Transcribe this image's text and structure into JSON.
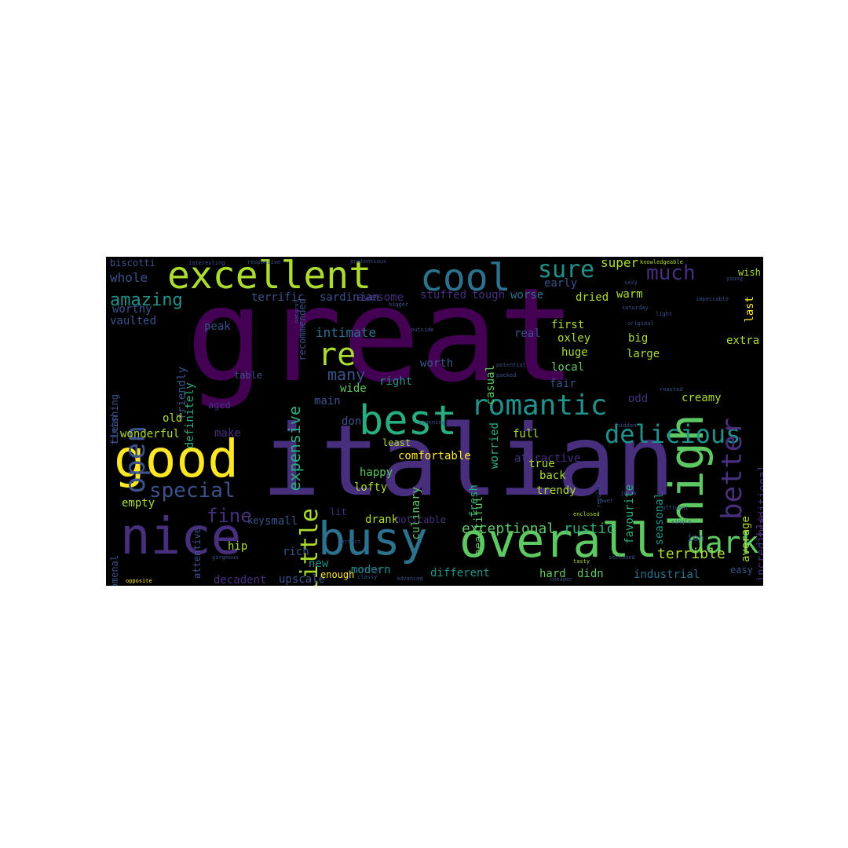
{
  "colors": {
    "background": "#000000",
    "page": "#ffffff",
    "palette": [
      "#440154",
      "#472f7d",
      "#3b528b",
      "#2c728e",
      "#21918c",
      "#28ae80",
      "#5ec962",
      "#addc30",
      "#fde725"
    ]
  },
  "words": [
    {
      "text": "great",
      "color": "#440154"
    },
    {
      "text": "italian",
      "color": "#472f7d"
    },
    {
      "text": "excellent",
      "color": "#addc30"
    },
    {
      "text": "cool",
      "color": "#2c728e"
    },
    {
      "text": "good",
      "color": "#fde725"
    },
    {
      "text": "nice",
      "color": "#472f7d"
    },
    {
      "text": "busy",
      "color": "#2c728e"
    },
    {
      "text": "overall",
      "color": "#5ec962"
    },
    {
      "text": "high",
      "color": "#5ec962"
    },
    {
      "text": "best",
      "color": "#28ae80"
    },
    {
      "text": "romantic",
      "color": "#21918c"
    },
    {
      "text": "delicious",
      "color": "#21918c"
    },
    {
      "text": "better",
      "color": "#472f7d"
    },
    {
      "text": "open",
      "color": "#3b528b"
    },
    {
      "text": "re",
      "color": "#addc30"
    },
    {
      "text": "little",
      "color": "#addc30"
    },
    {
      "text": "dark",
      "color": "#5ec962"
    },
    {
      "text": "sure",
      "color": "#21918c"
    },
    {
      "text": "much",
      "color": "#472f7d"
    },
    {
      "text": "special",
      "color": "#3b528b"
    },
    {
      "text": "amazing",
      "color": "#21918c"
    },
    {
      "text": "fine",
      "color": "#472f7d"
    },
    {
      "text": "exceptional",
      "color": "#5ec962"
    },
    {
      "text": "rustic",
      "color": "#28ae80"
    },
    {
      "text": "terrible",
      "color": "#addc30"
    },
    {
      "text": "expensive",
      "color": "#28ae80"
    },
    {
      "text": "many",
      "color": "#3b528b"
    },
    {
      "text": "intimate",
      "color": "#2c728e"
    },
    {
      "text": "whole",
      "color": "#3b528b"
    },
    {
      "text": "super",
      "color": "#addc30"
    },
    {
      "text": "terrific",
      "color": "#3b528b"
    },
    {
      "text": "sardinian",
      "color": "#3b528b"
    },
    {
      "text": "awesome",
      "color": "#472f7d"
    },
    {
      "text": "stuffed",
      "color": "#472f7d"
    },
    {
      "text": "tough",
      "color": "#472f7d"
    },
    {
      "text": "worse",
      "color": "#2c728e"
    },
    {
      "text": "early",
      "color": "#3b528b"
    },
    {
      "text": "dried",
      "color": "#addc30"
    },
    {
      "text": "warm",
      "color": "#addc30"
    },
    {
      "text": "last",
      "color": "#fde725"
    },
    {
      "text": "worthy",
      "color": "#3b528b"
    },
    {
      "text": "vaulted",
      "color": "#3b528b"
    },
    {
      "text": "peak",
      "color": "#3b528b"
    },
    {
      "text": "friendly",
      "color": "#3b528b"
    },
    {
      "text": "first",
      "color": "#addc30"
    },
    {
      "text": "oxley",
      "color": "#addc30"
    },
    {
      "text": "big",
      "color": "#addc30"
    },
    {
      "text": "extra",
      "color": "#addc30"
    },
    {
      "text": "huge",
      "color": "#addc30"
    },
    {
      "text": "large",
      "color": "#addc30"
    },
    {
      "text": "local",
      "color": "#5ec962"
    },
    {
      "text": "fair",
      "color": "#3b528b"
    },
    {
      "text": "worth",
      "color": "#3b528b"
    },
    {
      "text": "casual",
      "color": "#5ec962"
    },
    {
      "text": "wide",
      "color": "#5ec962"
    },
    {
      "text": "right",
      "color": "#21918c"
    },
    {
      "text": "main",
      "color": "#3b528b"
    },
    {
      "text": "worried",
      "color": "#28ae80"
    },
    {
      "text": "odd",
      "color": "#472f7d"
    },
    {
      "text": "creamy",
      "color": "#addc30"
    },
    {
      "text": "definitely",
      "color": "#28ae80"
    },
    {
      "text": "clean",
      "color": "#3b528b"
    },
    {
      "text": "finishing",
      "color": "#3b528b"
    },
    {
      "text": "aged",
      "color": "#472f7d"
    },
    {
      "text": "old",
      "color": "#addc30"
    },
    {
      "text": "wonderful",
      "color": "#addc30"
    },
    {
      "text": "make",
      "color": "#472f7d"
    },
    {
      "text": "don",
      "color": "#3b528b"
    },
    {
      "text": "full",
      "color": "#addc30"
    },
    {
      "text": "seasonal",
      "color": "#21918c"
    },
    {
      "text": "traditional",
      "color": "#472f7d"
    },
    {
      "text": "average",
      "color": "#addc30"
    },
    {
      "text": "incredible",
      "color": "#472f7d"
    },
    {
      "text": "favourite",
      "color": "#28ae80"
    },
    {
      "text": "attractive",
      "color": "#472f7d"
    },
    {
      "text": "fresh",
      "color": "#28ae80"
    },
    {
      "text": "true",
      "color": "#addc30"
    },
    {
      "text": "back",
      "color": "#addc30"
    },
    {
      "text": "happy",
      "color": "#5ec962"
    },
    {
      "text": "lofty",
      "color": "#addc30"
    },
    {
      "text": "trendy",
      "color": "#addc30"
    },
    {
      "text": "empty",
      "color": "#addc30"
    },
    {
      "text": "key",
      "color": "#3b528b"
    },
    {
      "text": "small",
      "color": "#3b528b"
    },
    {
      "text": "drank",
      "color": "#addc30"
    },
    {
      "text": "noticable",
      "color": "#472f7d"
    },
    {
      "text": "culinary",
      "color": "#5ec962"
    },
    {
      "text": "beautiful",
      "color": "#5ec962"
    },
    {
      "text": "comfortable",
      "color": "#fde725"
    },
    {
      "text": "least",
      "color": "#addc30"
    },
    {
      "text": "phenomenal",
      "color": "#3b528b"
    },
    {
      "text": "attentive",
      "color": "#3b528b"
    },
    {
      "text": "hip",
      "color": "#addc30"
    },
    {
      "text": "rich",
      "color": "#3b528b"
    },
    {
      "text": "new",
      "color": "#21918c"
    },
    {
      "text": "modern",
      "color": "#21918c"
    },
    {
      "text": "decadent",
      "color": "#472f7d"
    },
    {
      "text": "upscale",
      "color": "#3b528b"
    },
    {
      "text": "enough",
      "color": "#fde725"
    },
    {
      "text": "different",
      "color": "#21918c"
    },
    {
      "text": "hard",
      "color": "#5ec962"
    },
    {
      "text": "didn",
      "color": "#5ec962"
    },
    {
      "text": "industrial",
      "color": "#2c728e"
    },
    {
      "text": "easy",
      "color": "#3b528b"
    },
    {
      "text": "ion",
      "color": "#3b528b"
    },
    {
      "text": "biscotti",
      "color": "#3b528b"
    },
    {
      "text": "wish",
      "color": "#addc30"
    },
    {
      "text": "recommended",
      "color": "#3b528b"
    },
    {
      "text": "lit",
      "color": "#472f7d"
    },
    {
      "text": "pretentious",
      "color": "#3b528b"
    },
    {
      "text": "interesting",
      "color": "#3b528b"
    },
    {
      "text": "responsive",
      "color": "#3b528b"
    },
    {
      "text": "knowledgeable",
      "color": "#addc30"
    },
    {
      "text": "impeccable",
      "color": "#3b528b"
    },
    {
      "text": "potential",
      "color": "#3b528b"
    },
    {
      "text": "packed",
      "color": "#3b528b"
    },
    {
      "text": "saturday",
      "color": "#3b528b"
    },
    {
      "text": "enclosed",
      "color": "#addc30"
    },
    {
      "text": "regular",
      "color": "#3b528b"
    },
    {
      "text": "sexy",
      "color": "#3b528b"
    },
    {
      "text": "light",
      "color": "#3b528b"
    },
    {
      "text": "affluent",
      "color": "#3b528b"
    },
    {
      "text": "single",
      "color": "#3b528b"
    },
    {
      "text": "young",
      "color": "#3b528b"
    },
    {
      "text": "classy",
      "color": "#3b528b"
    },
    {
      "text": "stylish",
      "color": "#3b528b"
    },
    {
      "text": "advanced",
      "color": "#3b528b"
    },
    {
      "text": "opposite",
      "color": "#fde725"
    },
    {
      "text": "gorgeous",
      "color": "#3b528b"
    },
    {
      "text": "perfect",
      "color": "#3b528b"
    },
    {
      "text": "cheaper",
      "color": "#3b528b"
    },
    {
      "text": "tasty",
      "color": "#addc30"
    },
    {
      "text": "lower",
      "color": "#3b528b"
    },
    {
      "text": "juicy",
      "color": "#3b528b"
    },
    {
      "text": "secluded",
      "color": "#3b528b"
    },
    {
      "text": "natural",
      "color": "#3b528b"
    },
    {
      "text": "table",
      "color": "#3b528b"
    },
    {
      "text": "real",
      "color": "#3b528b"
    },
    {
      "text": "stunning",
      "color": "#3b528b"
    },
    {
      "text": "outside",
      "color": "#3b528b"
    },
    {
      "text": "roasted",
      "color": "#3b528b"
    },
    {
      "text": "original",
      "color": "#3b528b"
    },
    {
      "text": "bigger",
      "color": "#3b528b"
    },
    {
      "text": "hidden",
      "color": "#3b528b"
    }
  ]
}
